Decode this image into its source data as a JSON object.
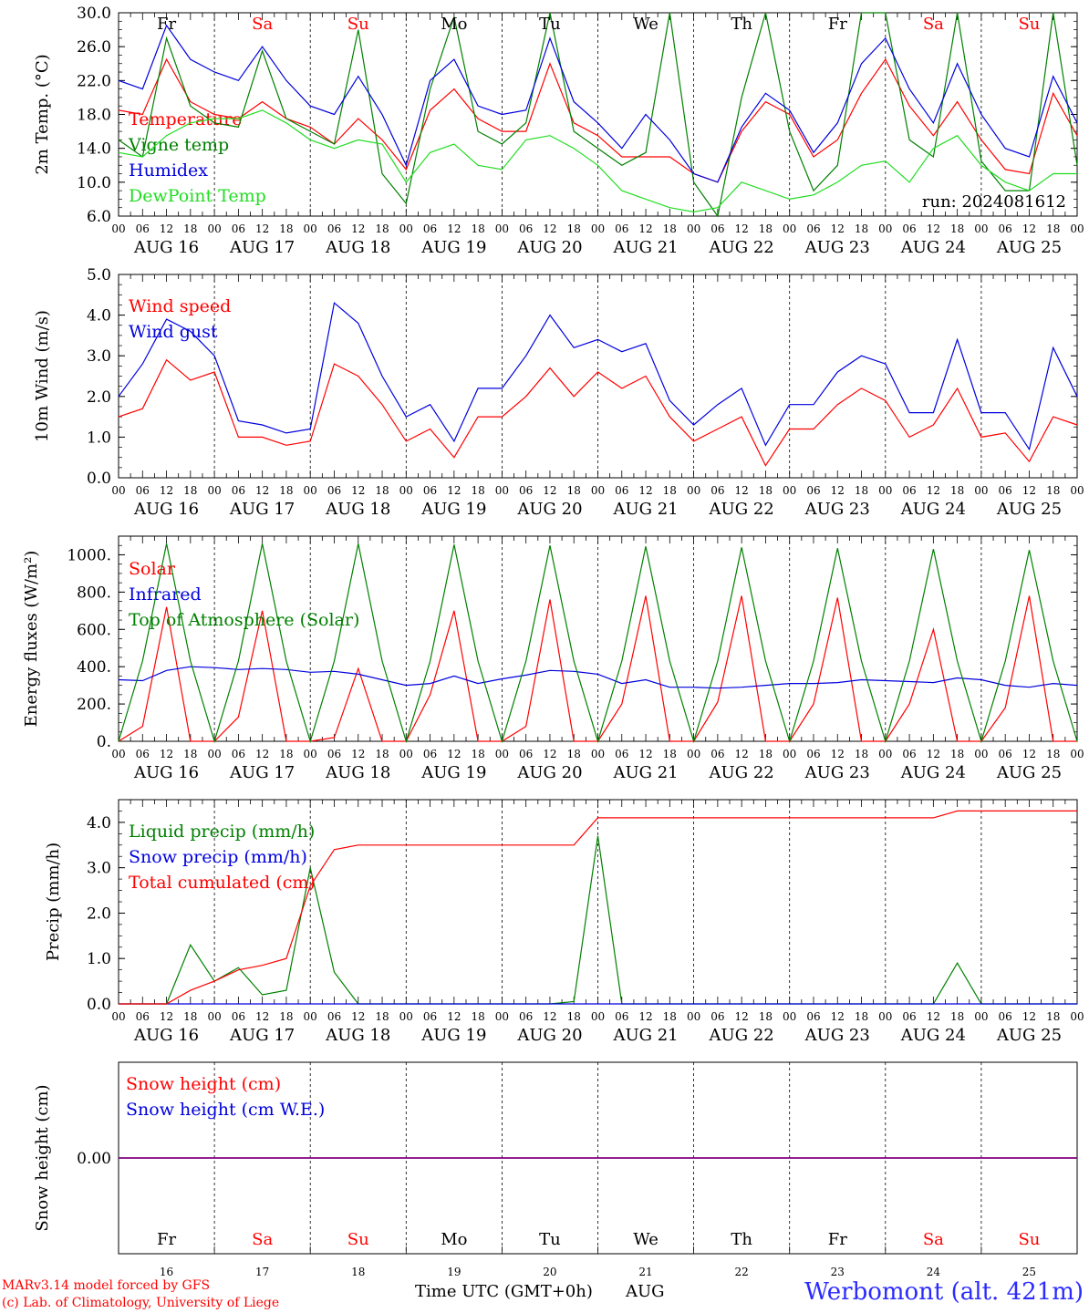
{
  "footer": {
    "credit1": "MARv3.14 model forced by GFS",
    "credit2": "(c) Lab. of Climatology, University of Liege",
    "xlabel": "Time UTC (GMT+0h)",
    "month": "AUG",
    "station": "Werbomont (alt. 421m)"
  },
  "colors": {
    "red": "#ff0000",
    "darkgreen": "#008000",
    "blue": "#0000dd",
    "lightgreen": "#22dd22",
    "purple": "#800080"
  },
  "chart_data": [
    {
      "type": "line",
      "ylabel": "2m Temp. (°C)",
      "ylim": [
        6,
        30
      ],
      "yticks": [
        "6.0",
        "10.0",
        "14.0",
        "18.0",
        "22.0",
        "26.0",
        "30.0"
      ],
      "ytick_values": [
        6,
        10,
        14,
        18,
        22,
        26,
        30
      ],
      "x_hours": [
        0,
        6,
        12,
        18,
        24,
        30,
        36,
        42,
        48,
        54,
        60,
        66,
        72,
        78,
        84,
        90,
        96,
        102,
        108,
        114,
        120,
        126,
        132,
        138,
        144,
        150,
        156,
        162,
        168,
        174,
        180,
        186,
        192,
        198,
        204,
        210,
        216,
        222,
        228,
        234,
        240
      ],
      "annotation": "run: 2024081612",
      "weekday_labels": [
        "Fr",
        "Sa",
        "Su",
        "Mo",
        "Tu",
        "We",
        "Th",
        "Fr",
        "Sa",
        "Su"
      ],
      "series": [
        {
          "name": "Temperature",
          "color": "red",
          "values": [
            18.5,
            18.0,
            24.5,
            19.5,
            18.0,
            17.5,
            19.5,
            17.5,
            16.5,
            14.5,
            17.5,
            15.0,
            11.5,
            18.5,
            21.0,
            17.5,
            16.0,
            16.0,
            24.0,
            17.0,
            15.5,
            13.0,
            13.0,
            13.0,
            11.0,
            10.0,
            16.0,
            19.5,
            18.0,
            13.0,
            15.0,
            20.5,
            24.5,
            19.0,
            15.5,
            19.5,
            15.0,
            11.5,
            11.0,
            20.5,
            15.5
          ]
        },
        {
          "name": "Vigne temp",
          "color": "darkgreen",
          "values": [
            15.0,
            13.0,
            27.0,
            19.0,
            17.0,
            16.5,
            25.5,
            17.5,
            16.0,
            14.5,
            28.0,
            11.0,
            7.5,
            21.0,
            29.5,
            16.0,
            14.5,
            17.0,
            30.0,
            16.0,
            14.0,
            12.0,
            13.5,
            30.0,
            10.0,
            6.0,
            20.0,
            30.0,
            16.0,
            9.0,
            12.0,
            30.0,
            30.0,
            15.0,
            13.0,
            30.0,
            12.5,
            9.0,
            9.0,
            30.0,
            12.0
          ]
        },
        {
          "name": "Humidex",
          "color": "blue",
          "values": [
            22.0,
            21.0,
            28.5,
            24.5,
            23.0,
            22.0,
            26.0,
            22.0,
            19.0,
            18.0,
            22.5,
            18.0,
            12.0,
            22.0,
            24.5,
            19.0,
            18.0,
            18.5,
            27.0,
            19.5,
            17.0,
            14.0,
            18.0,
            15.0,
            11.0,
            10.0,
            16.5,
            20.5,
            18.5,
            13.5,
            17.0,
            24.0,
            27.0,
            21.0,
            17.0,
            24.0,
            18.0,
            14.0,
            13.0,
            22.5,
            17.0
          ]
        },
        {
          "name": "DewPoint Temp",
          "color": "lightgreen",
          "values": [
            13.5,
            13.0,
            15.5,
            17.0,
            17.5,
            17.5,
            18.5,
            17.0,
            15.0,
            14.0,
            15.0,
            14.5,
            10.0,
            13.5,
            14.5,
            12.0,
            11.5,
            15.0,
            15.5,
            14.0,
            12.0,
            9.0,
            8.0,
            7.0,
            6.5,
            7.0,
            10.0,
            9.0,
            8.0,
            8.5,
            10.0,
            12.0,
            12.5,
            10.0,
            14.0,
            15.5,
            12.0,
            10.0,
            9.0,
            11.0,
            11.0
          ]
        }
      ]
    },
    {
      "type": "line",
      "ylabel": "10m Wind (m/s)",
      "ylim": [
        0,
        5
      ],
      "yticks": [
        "0.0",
        "1.0",
        "2.0",
        "3.0",
        "4.0",
        "5.0"
      ],
      "ytick_values": [
        0,
        1,
        2,
        3,
        4,
        5
      ],
      "x_hours": [
        0,
        6,
        12,
        18,
        24,
        30,
        36,
        42,
        48,
        54,
        60,
        66,
        72,
        78,
        84,
        90,
        96,
        102,
        108,
        114,
        120,
        126,
        132,
        138,
        144,
        150,
        156,
        162,
        168,
        174,
        180,
        186,
        192,
        198,
        204,
        210,
        216,
        222,
        228,
        234,
        240
      ],
      "series": [
        {
          "name": "Wind speed",
          "color": "red",
          "values": [
            1.5,
            1.7,
            2.9,
            2.4,
            2.6,
            1.0,
            1.0,
            0.8,
            0.9,
            2.8,
            2.5,
            1.8,
            0.9,
            1.2,
            0.5,
            1.5,
            1.5,
            2.0,
            2.7,
            2.0,
            2.6,
            2.2,
            2.5,
            1.5,
            0.9,
            1.2,
            1.5,
            0.3,
            1.2,
            1.2,
            1.8,
            2.2,
            1.9,
            1.0,
            1.3,
            2.2,
            1.0,
            1.1,
            0.4,
            1.5,
            1.3
          ]
        },
        {
          "name": "Wind gust",
          "color": "blue",
          "values": [
            2.0,
            2.8,
            3.9,
            3.6,
            3.0,
            1.4,
            1.3,
            1.1,
            1.2,
            4.3,
            3.8,
            2.5,
            1.5,
            1.8,
            0.9,
            2.2,
            2.2,
            3.0,
            4.0,
            3.2,
            3.4,
            3.1,
            3.3,
            1.9,
            1.3,
            1.8,
            2.2,
            0.8,
            1.8,
            1.8,
            2.6,
            3.0,
            2.8,
            1.6,
            1.6,
            3.4,
            1.6,
            1.6,
            0.7,
            3.2,
            2.0
          ]
        }
      ]
    },
    {
      "type": "line",
      "ylabel": "Energy fluxes (W/m²)",
      "ylim": [
        0,
        1100
      ],
      "yticks": [
        "0.",
        "200.",
        "400.",
        "600.",
        "800.",
        "1000."
      ],
      "ytick_values": [
        0,
        200,
        400,
        600,
        800,
        1000
      ],
      "x_hours": [
        0,
        6,
        12,
        18,
        24,
        30,
        36,
        42,
        48,
        54,
        60,
        66,
        72,
        78,
        84,
        90,
        96,
        102,
        108,
        114,
        120,
        126,
        132,
        138,
        144,
        150,
        156,
        162,
        168,
        174,
        180,
        186,
        192,
        198,
        204,
        210,
        216,
        222,
        228,
        234,
        240
      ],
      "series": [
        {
          "name": "Solar",
          "color": "red",
          "values": [
            0,
            80,
            720,
            0,
            0,
            130,
            700,
            0,
            0,
            20,
            390,
            0,
            0,
            250,
            700,
            0,
            0,
            80,
            760,
            0,
            0,
            200,
            780,
            0,
            0,
            210,
            780,
            0,
            0,
            200,
            770,
            0,
            0,
            200,
            600,
            0,
            0,
            180,
            780,
            0,
            0
          ]
        },
        {
          "name": "Infrared",
          "color": "blue",
          "values": [
            330,
            325,
            380,
            400,
            395,
            385,
            390,
            385,
            370,
            375,
            360,
            330,
            300,
            310,
            350,
            310,
            335,
            355,
            380,
            375,
            360,
            310,
            330,
            290,
            290,
            285,
            290,
            300,
            310,
            310,
            315,
            330,
            325,
            320,
            315,
            340,
            330,
            300,
            290,
            310,
            300
          ]
        },
        {
          "name": "Top of Atmosphere (Solar)",
          "color": "darkgreen",
          "values": [
            0,
            430,
            1060,
            430,
            0,
            430,
            1060,
            430,
            0,
            430,
            1060,
            430,
            0,
            430,
            1055,
            430,
            0,
            430,
            1050,
            430,
            0,
            430,
            1045,
            430,
            0,
            430,
            1040,
            430,
            0,
            430,
            1035,
            430,
            0,
            430,
            1030,
            430,
            0,
            430,
            1025,
            430,
            0
          ]
        }
      ]
    },
    {
      "type": "line",
      "ylabel": "Precip (mm/h)",
      "ylim": [
        0,
        4.5
      ],
      "yticks": [
        "0.0",
        "1.0",
        "2.0",
        "3.0",
        "4.0"
      ],
      "ytick_values": [
        0,
        1,
        2,
        3,
        4
      ],
      "x_hours": [
        0,
        6,
        12,
        18,
        24,
        30,
        36,
        42,
        48,
        54,
        60,
        66,
        72,
        78,
        84,
        90,
        96,
        102,
        108,
        114,
        120,
        126,
        132,
        138,
        144,
        150,
        156,
        162,
        168,
        174,
        180,
        186,
        192,
        198,
        204,
        210,
        216,
        222,
        228,
        234,
        240
      ],
      "series": [
        {
          "name": "Liquid precip (mm/h)",
          "color": "darkgreen",
          "values": [
            0,
            0,
            0,
            1.3,
            0.5,
            0.8,
            0.2,
            0.3,
            3.0,
            0.7,
            0,
            0,
            0,
            0,
            0,
            0,
            0,
            0,
            0,
            0.05,
            3.7,
            0,
            0,
            0,
            0,
            0,
            0,
            0,
            0,
            0,
            0,
            0,
            0,
            0,
            0,
            0.9,
            0,
            0,
            0,
            0,
            0
          ]
        },
        {
          "name": "Snow precip (mm/h)",
          "color": "blue",
          "values": [
            0,
            0,
            0,
            0,
            0,
            0,
            0,
            0,
            0,
            0,
            0,
            0,
            0,
            0,
            0,
            0,
            0,
            0,
            0,
            0,
            0,
            0,
            0,
            0,
            0,
            0,
            0,
            0,
            0,
            0,
            0,
            0,
            0,
            0,
            0,
            0,
            0,
            0,
            0,
            0,
            0
          ]
        },
        {
          "name": "Total cumulated (cm)",
          "color": "red",
          "values": [
            0,
            0,
            0,
            0.3,
            0.5,
            0.75,
            0.85,
            1.0,
            2.6,
            3.4,
            3.5,
            3.5,
            3.5,
            3.5,
            3.5,
            3.5,
            3.5,
            3.5,
            3.5,
            3.5,
            4.1,
            4.1,
            4.1,
            4.1,
            4.1,
            4.1,
            4.1,
            4.1,
            4.1,
            4.1,
            4.1,
            4.1,
            4.1,
            4.1,
            4.1,
            4.25,
            4.25,
            4.25,
            4.25,
            4.25,
            4.25
          ]
        }
      ]
    },
    {
      "type": "line",
      "ylabel": "Snow height (cm)",
      "ylim": [
        -1,
        1
      ],
      "yticks": [
        "0.00"
      ],
      "ytick_values": [
        0
      ],
      "x_hours": [
        0,
        240
      ],
      "weekday_labels": [
        "Fr",
        "Sa",
        "Su",
        "Mo",
        "Tu",
        "We",
        "Th",
        "Fr",
        "Sa",
        "Su"
      ],
      "day_numbers": [
        "16",
        "17",
        "18",
        "19",
        "20",
        "21",
        "22",
        "23",
        "24",
        "25"
      ],
      "series": [
        {
          "name": "Snow height (cm)",
          "color": "red",
          "values": [
            0,
            0
          ]
        },
        {
          "name": "Snow height (cm W.E.)",
          "color": "blue",
          "values": [
            0,
            0
          ]
        }
      ]
    }
  ],
  "x_axis": {
    "hour_labels": [
      "00",
      "06",
      "12",
      "18"
    ],
    "final_hour_label": "00",
    "day_labels": [
      "AUG 16",
      "AUG 17",
      "AUG 18",
      "AUG 19",
      "AUG 20",
      "AUG 21",
      "AUG 22",
      "AUG 23",
      "AUG 24",
      "AUG 25"
    ],
    "weekend_days": [
      1,
      2,
      8,
      9
    ]
  }
}
